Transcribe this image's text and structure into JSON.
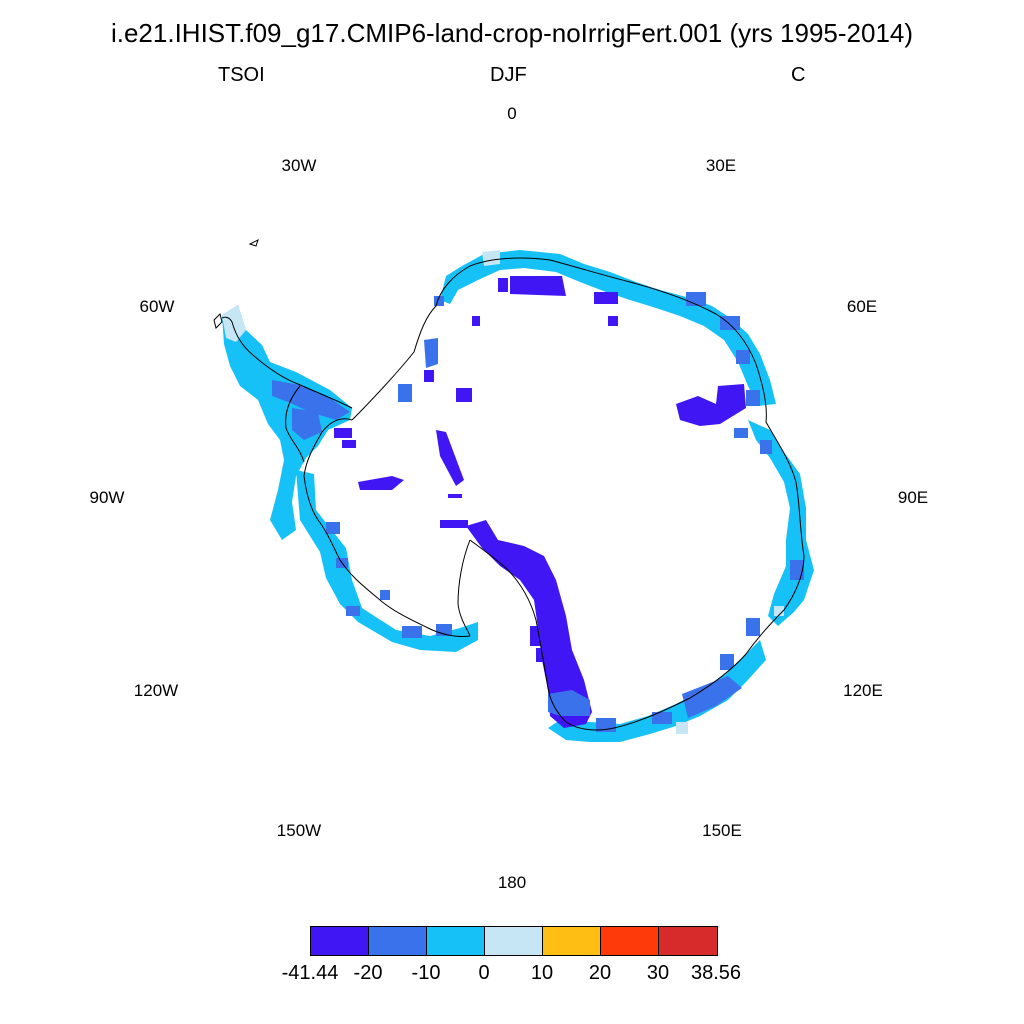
{
  "header": {
    "title": "i.e21.IHIST.f09_g17.CMIP6-land-crop-noIrrigFert.001 (yrs 1995-2014)",
    "variable": "TSOI",
    "season": "DJF",
    "units": "C"
  },
  "longitude_labels": [
    "0",
    "30E",
    "60E",
    "90E",
    "120E",
    "150E",
    "180",
    "150W",
    "120W",
    "90W",
    "60W",
    "30W"
  ],
  "colorbar": {
    "colors": [
      "#4016f5",
      "#3a72ec",
      "#15c1f7",
      "#c6e6f6",
      "#ffbe14",
      "#ff3a0a",
      "#d72a2a"
    ],
    "labels": [
      "-41.44",
      "-20",
      "-10",
      "0",
      "10",
      "20",
      "30",
      "38.56"
    ]
  }
}
